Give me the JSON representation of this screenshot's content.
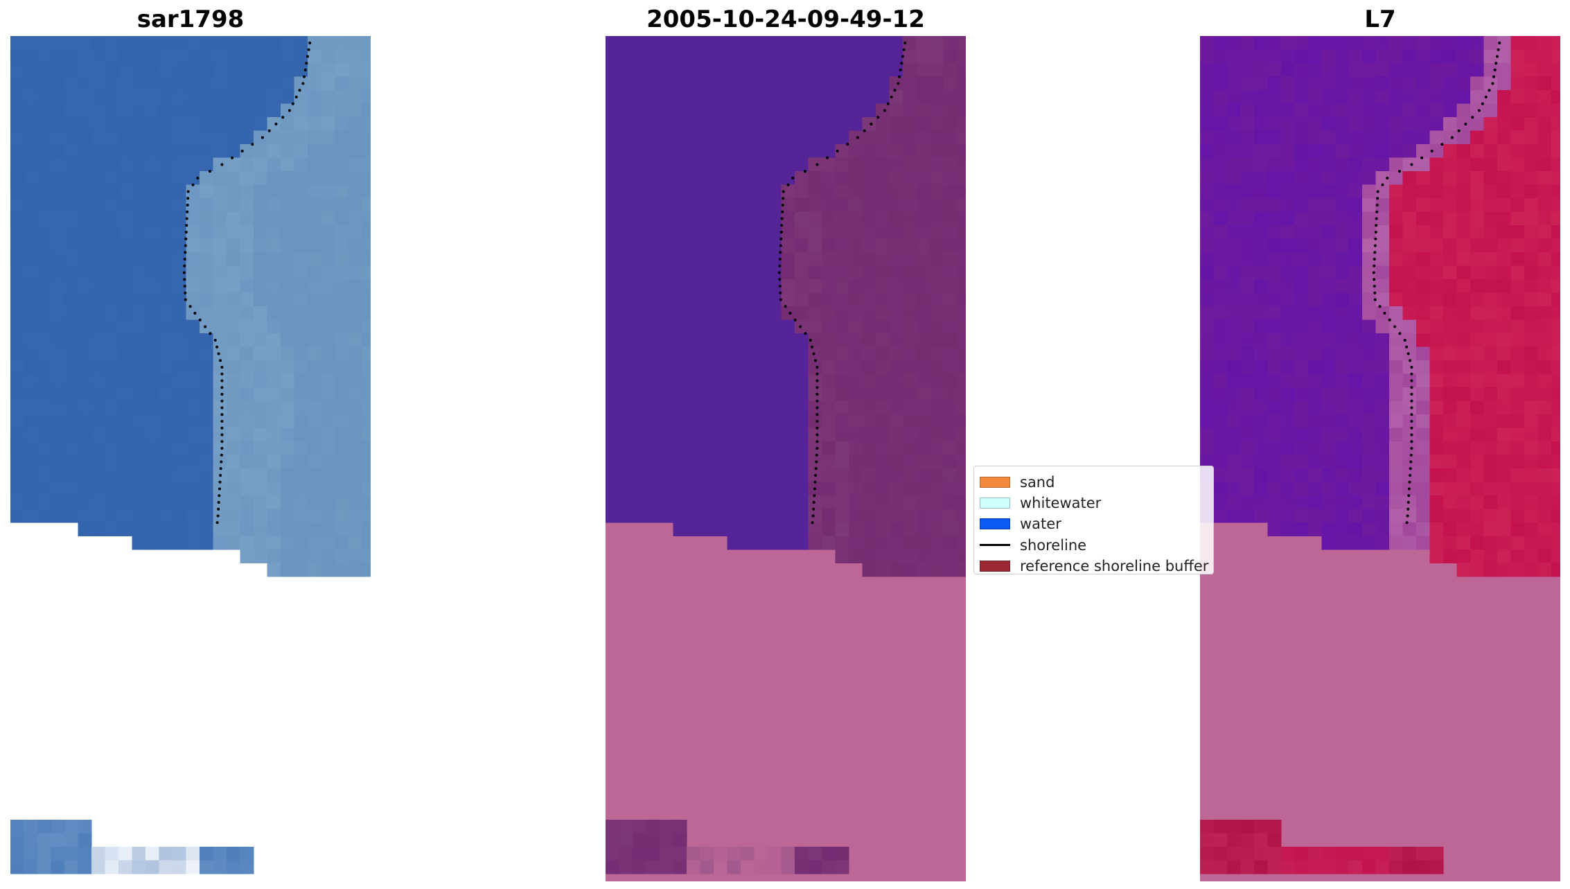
{
  "panels": [
    {
      "title": "sar1798",
      "kind": "rgb"
    },
    {
      "title": "2005-10-24-09-49-12",
      "kind": "classified"
    },
    {
      "title": "L7",
      "kind": "index"
    }
  ],
  "legend": {
    "items": [
      {
        "label": "sand",
        "color": "#F28C3C",
        "style": "patch"
      },
      {
        "label": "whitewater",
        "color": "#CFFEFF",
        "style": "patch"
      },
      {
        "label": "water",
        "color": "#0A5CF5",
        "style": "patch"
      },
      {
        "label": "shoreline",
        "color": "#000000",
        "style": "line"
      },
      {
        "label": "reference shoreline buffer",
        "color": "#9B2A35",
        "style": "patch"
      }
    ]
  },
  "colors": {
    "sar_water": "#3566AE",
    "sar_beach": "#6B95BF",
    "class_water": "#552496",
    "class_land": "#742C72",
    "buffer_overlay": "#BC6796",
    "index_water": "#6F1B9E",
    "index_land": "#C4124F",
    "index_transition": "#A2479C"
  }
}
